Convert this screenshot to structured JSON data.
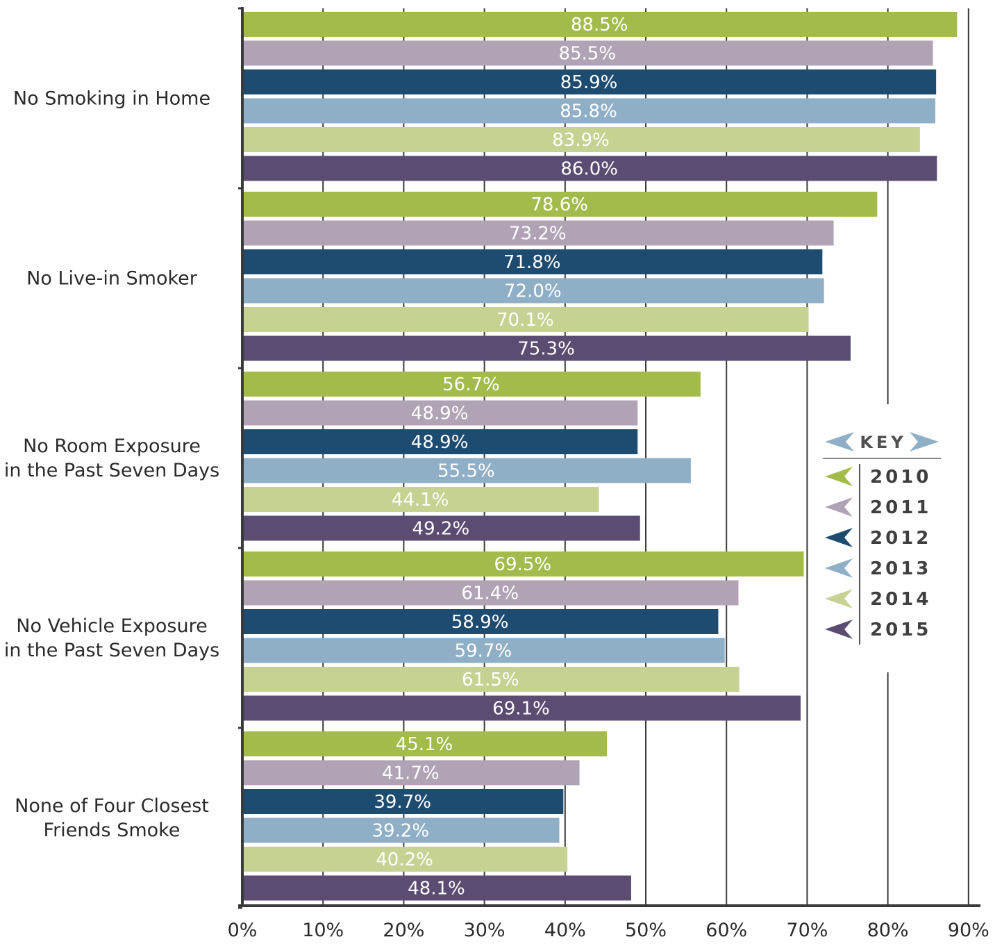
{
  "chart_data": {
    "type": "bar",
    "orientation": "horizontal",
    "categories": [
      [
        "No Smoking in Home"
      ],
      [
        "No Live-in Smoker"
      ],
      [
        "No Room Exposure",
        "in the Past Seven Days"
      ],
      [
        "No Vehicle Exposure",
        "in the Past Seven Days"
      ],
      [
        "None of Four Closest",
        "Friends Smoke"
      ]
    ],
    "series": [
      {
        "name": "2010",
        "color": "#a2bb4b",
        "values": [
          88.5,
          78.6,
          56.7,
          69.5,
          45.1
        ],
        "labels": [
          "88.5%",
          "78.6%",
          "56.7%",
          "69.5%",
          "45.1%"
        ]
      },
      {
        "name": "2011",
        "color": "#b0a3b6",
        "values": [
          85.5,
          73.2,
          48.9,
          61.4,
          41.7
        ],
        "labels": [
          "85.5%",
          "73.2%",
          "48.9%",
          "61.4%",
          "41.7%"
        ]
      },
      {
        "name": "2012",
        "color": "#1e4b70",
        "values": [
          85.9,
          71.8,
          48.9,
          58.9,
          39.7
        ],
        "labels": [
          "85.9%",
          "71.8%",
          "48.9%",
          "58.9%",
          "39.7%"
        ]
      },
      {
        "name": "2013",
        "color": "#8fafc6",
        "values": [
          85.8,
          72.0,
          55.5,
          59.7,
          39.2
        ],
        "labels": [
          "85.8%",
          "72.0%",
          "55.5%",
          "59.7%",
          "39.2%"
        ]
      },
      {
        "name": "2014",
        "color": "#c6d292",
        "values": [
          83.9,
          70.1,
          44.1,
          61.5,
          40.2
        ],
        "labels": [
          "83.9%",
          "70.1%",
          "44.1%",
          "61.5%",
          "40.2%"
        ]
      },
      {
        "name": "2015",
        "color": "#5b4c72",
        "values": [
          86.0,
          75.3,
          49.2,
          69.1,
          48.1
        ],
        "labels": [
          "86.0%",
          "75.3%",
          "49.2%",
          "69.1%",
          "48.1%"
        ]
      }
    ],
    "x_ticks": [
      "0%",
      "10%",
      "20%",
      "30%",
      "40%",
      "50%",
      "60%",
      "70%",
      "80%",
      "90%"
    ],
    "xlim": [
      0,
      90
    ],
    "grid": true,
    "legend": {
      "title": "KEY",
      "placement": "right"
    }
  }
}
